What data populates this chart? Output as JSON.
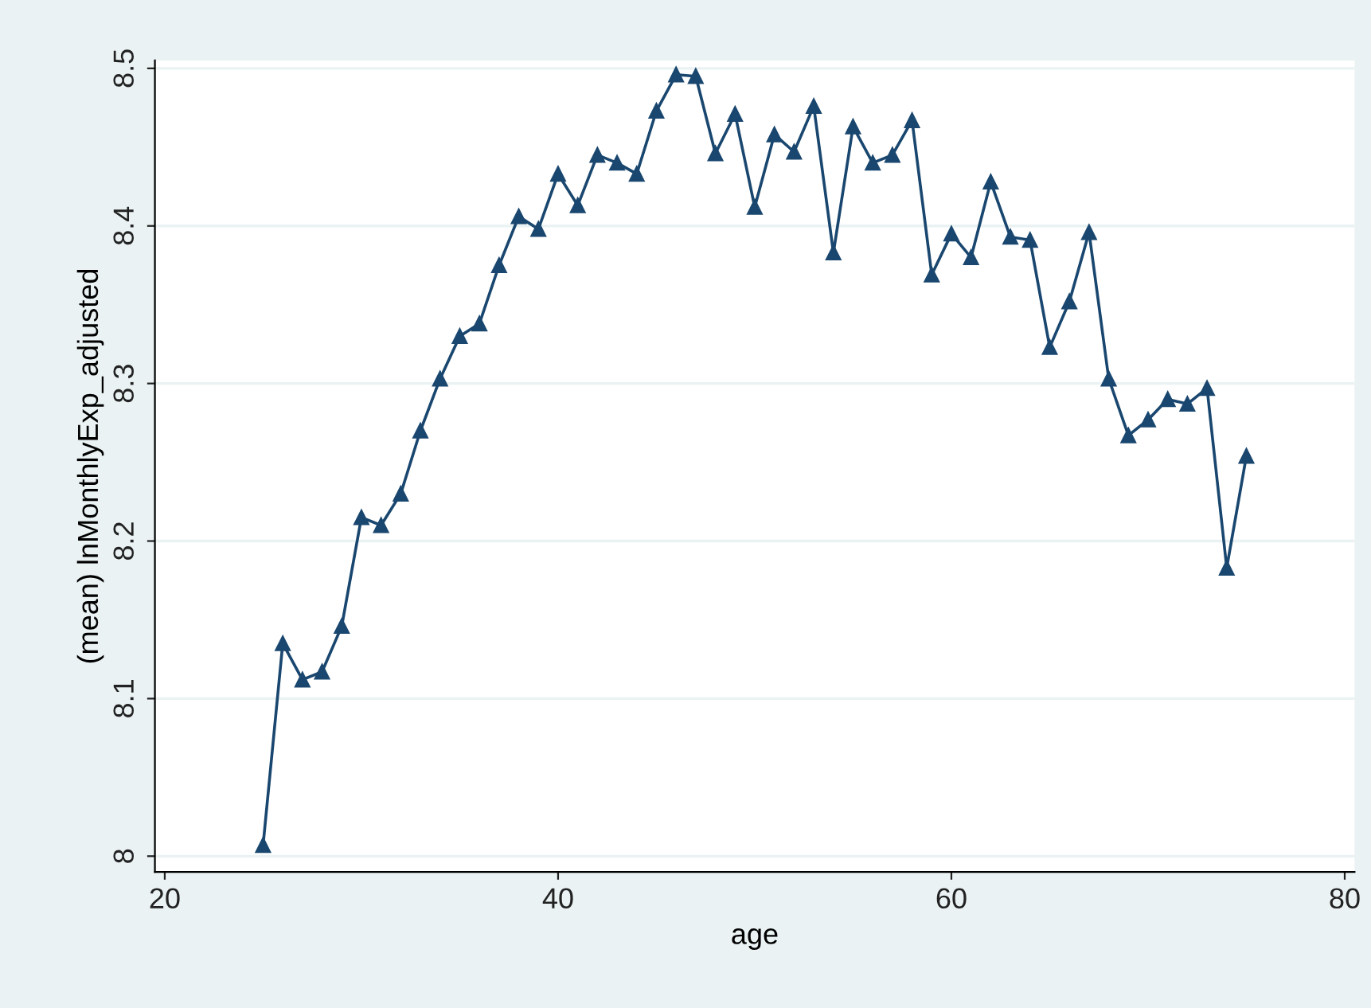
{
  "chart_data": {
    "type": "line",
    "xlabel": "age",
    "ylabel": "(mean) lnMonthlyExp_adjusted",
    "x": [
      25,
      26,
      27,
      28,
      29,
      30,
      31,
      32,
      33,
      34,
      35,
      36,
      37,
      38,
      39,
      40,
      41,
      42,
      43,
      44,
      45,
      46,
      47,
      48,
      49,
      50,
      51,
      52,
      53,
      54,
      55,
      56,
      57,
      58,
      59,
      60,
      61,
      62,
      63,
      64,
      65,
      66,
      67,
      68,
      69,
      70,
      71,
      72,
      73,
      74,
      75
    ],
    "series": [
      {
        "color": "#1a476f",
        "values": [
          8.007,
          8.135,
          8.112,
          8.117,
          8.146,
          8.215,
          8.21,
          8.23,
          8.27,
          8.303,
          8.33,
          8.338,
          8.375,
          8.406,
          8.398,
          8.433,
          8.413,
          8.445,
          8.44,
          8.433,
          8.473,
          8.496,
          8.495,
          8.446,
          8.471,
          8.412,
          8.458,
          8.447,
          8.476,
          8.383,
          8.463,
          8.44,
          8.445,
          8.467,
          8.369,
          8.395,
          8.38,
          8.428,
          8.393,
          8.391,
          8.323,
          8.352,
          8.396,
          8.303,
          8.267,
          8.277,
          8.29,
          8.287,
          8.297,
          8.183,
          8.254
        ]
      }
    ],
    "xlim": [
      19.5,
      80.5
    ],
    "ylim": [
      7.99,
      8.505
    ],
    "xticks": [
      20,
      40,
      60,
      80
    ],
    "yticks": [
      8,
      8.1,
      8.2,
      8.3,
      8.4,
      8.5
    ],
    "grid": "y",
    "marker": "triangle",
    "line_style": "solid",
    "legend": false
  }
}
